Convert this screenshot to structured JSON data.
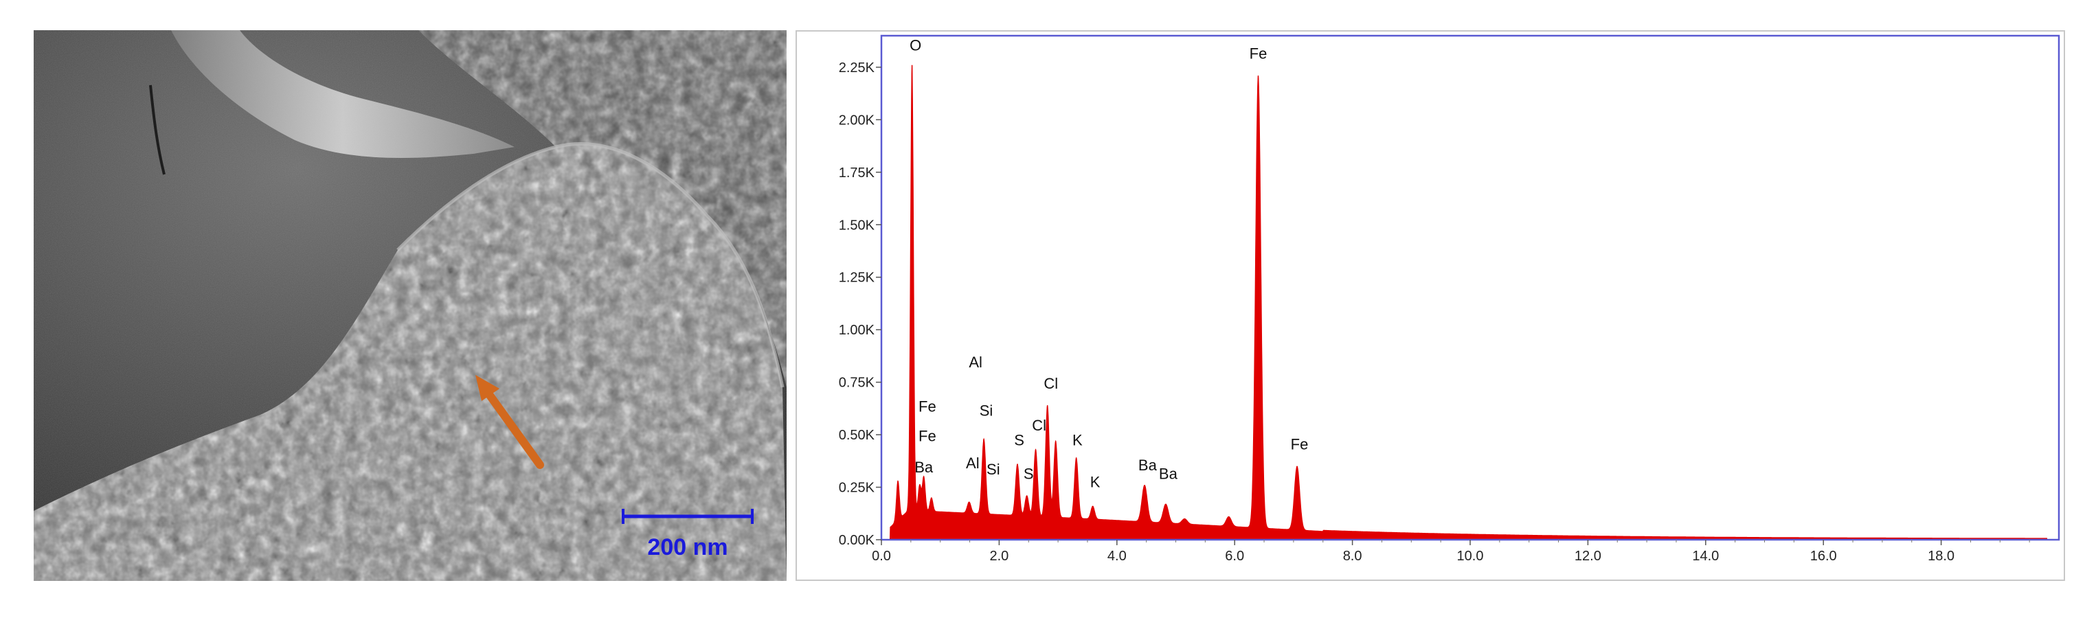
{
  "sem_image": {
    "scale_bar_label": "200 nm",
    "scale_bar_color": "#1a1adb",
    "arrow_color": "#d2691e"
  },
  "chart_data": {
    "type": "line",
    "xlim": [
      0,
      20
    ],
    "ylim": [
      0,
      2400
    ],
    "x_ticks": [
      "0.0",
      "2.0",
      "4.0",
      "6.0",
      "8.0",
      "10.0",
      "12.0",
      "14.0",
      "16.0",
      "18.0"
    ],
    "y_ticks": [
      "0.00K",
      "0.25K",
      "0.50K",
      "0.75K",
      "1.00K",
      "1.25K",
      "1.50K",
      "1.75K",
      "2.00K",
      "2.25K"
    ],
    "grid": false,
    "series_color": "#e00000",
    "frame_color": "#5a5ad2",
    "peaks": [
      {
        "x": 0.28,
        "y": 280
      },
      {
        "x": 0.52,
        "y": 2260
      },
      {
        "x": 0.65,
        "y": 260
      },
      {
        "x": 0.72,
        "y": 300
      },
      {
        "x": 0.85,
        "y": 200
      },
      {
        "x": 1.49,
        "y": 180
      },
      {
        "x": 1.74,
        "y": 480
      },
      {
        "x": 2.31,
        "y": 360
      },
      {
        "x": 2.47,
        "y": 210
      },
      {
        "x": 2.62,
        "y": 430
      },
      {
        "x": 2.82,
        "y": 640
      },
      {
        "x": 2.96,
        "y": 470
      },
      {
        "x": 3.31,
        "y": 390
      },
      {
        "x": 3.59,
        "y": 160
      },
      {
        "x": 4.47,
        "y": 260
      },
      {
        "x": 4.83,
        "y": 170
      },
      {
        "x": 5.15,
        "y": 100
      },
      {
        "x": 5.9,
        "y": 110
      },
      {
        "x": 6.4,
        "y": 2210
      },
      {
        "x": 7.06,
        "y": 350
      }
    ],
    "annotations": [
      {
        "label": "O",
        "x": 0.58,
        "y": 2330
      },
      {
        "label": "Fe",
        "x": 6.4,
        "y": 2290
      },
      {
        "label": "Fe",
        "x": 0.78,
        "y": 610
      },
      {
        "label": "Fe",
        "x": 0.78,
        "y": 470
      },
      {
        "label": "Ba",
        "x": 0.72,
        "y": 320
      },
      {
        "label": "Al",
        "x": 1.6,
        "y": 820
      },
      {
        "label": "Si",
        "x": 1.78,
        "y": 590
      },
      {
        "label": "Al",
        "x": 1.55,
        "y": 340
      },
      {
        "label": "Si",
        "x": 1.9,
        "y": 310
      },
      {
        "label": "S",
        "x": 2.34,
        "y": 450
      },
      {
        "label": "S",
        "x": 2.5,
        "y": 290
      },
      {
        "label": "Cl",
        "x": 2.68,
        "y": 520
      },
      {
        "label": "Cl",
        "x": 2.88,
        "y": 720
      },
      {
        "label": "K",
        "x": 3.33,
        "y": 450
      },
      {
        "label": "K",
        "x": 3.63,
        "y": 250
      },
      {
        "label": "Ba",
        "x": 4.52,
        "y": 330
      },
      {
        "label": "Ba",
        "x": 4.87,
        "y": 290
      },
      {
        "label": "Fe",
        "x": 7.1,
        "y": 430
      }
    ]
  }
}
